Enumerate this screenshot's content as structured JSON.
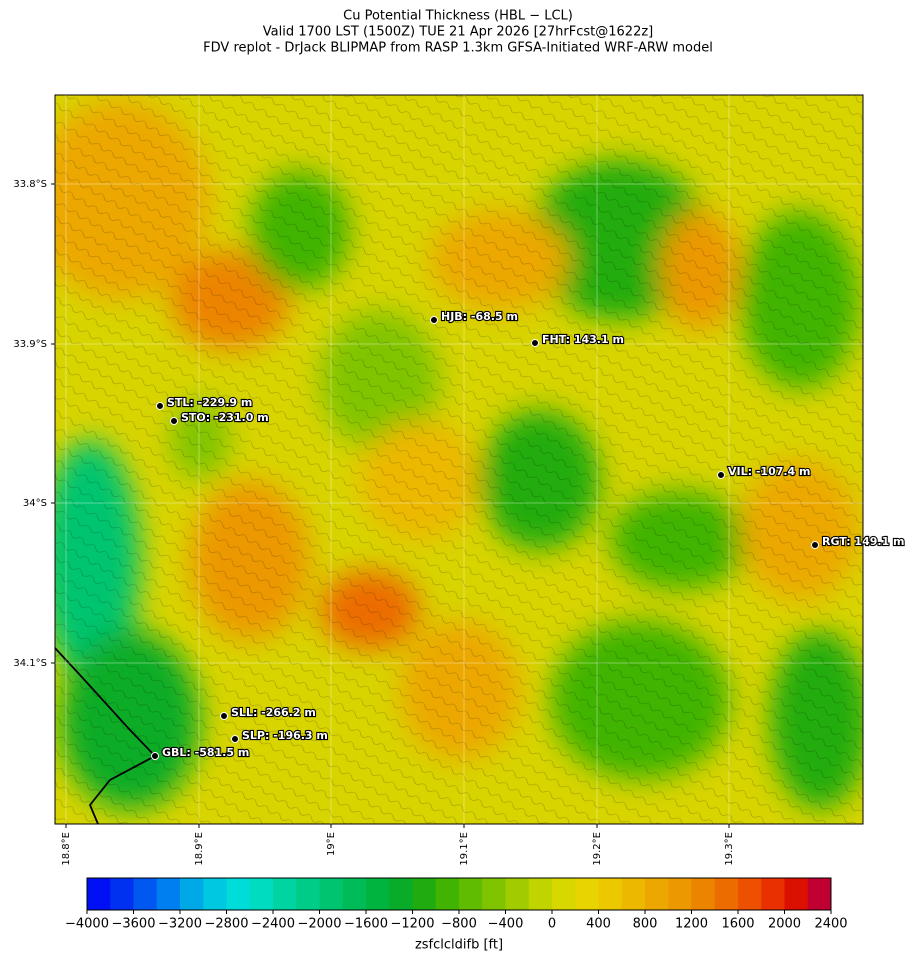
{
  "title": [
    "Cu Potential Thickness (HBL − LCL)",
    "Valid 1700 LST (1500Z) TUE 21 Apr 2026 [27hrFcst@1622z]",
    "FDV replot - DrJack BLIPMAP from RASP 1.3km GFSA-Initiated WRF-ARW model"
  ],
  "latitude_ticks": [
    "33.8°S",
    "33.9°S",
    "34°S",
    "34.1°S"
  ],
  "longitude_ticks": [
    "18.8°E",
    "18.9°E",
    "19°E",
    "19.1°E",
    "19.2°E",
    "19.3°E"
  ],
  "stations": [
    "HJB: -68.5 m",
    "FHT: 143.1 m",
    "STL: -229.9 m",
    "STO: -231.0 m",
    "VIL: -107.4 m",
    "RGT: 149.1 m",
    "SLL: -266.2 m",
    "SLP: -196.3 m",
    "GBL: -581.5 m"
  ],
  "colorbar": {
    "label": "zsfclcldifb [ft]",
    "lim": [
      -4000,
      2400
    ],
    "step": 200,
    "ticks": [
      {
        "value": -4000,
        "label": "−4000"
      },
      {
        "value": -3600,
        "label": "−3600"
      },
      {
        "value": -3200,
        "label": "−3200"
      },
      {
        "value": -2800,
        "label": "−2800"
      },
      {
        "value": -2400,
        "label": "−2400"
      },
      {
        "value": -2000,
        "label": "−2000"
      },
      {
        "value": -1600,
        "label": "−1600"
      },
      {
        "value": -1200,
        "label": "−1200"
      },
      {
        "value": -800,
        "label": "−800"
      },
      {
        "value": -400,
        "label": "−400"
      },
      0,
      400,
      800,
      1200,
      1600,
      2000,
      2400
    ],
    "colors": [
      "#0010f5",
      "#0030f0",
      "#0058f0",
      "#0080f0",
      "#00a8e8",
      "#00c8e0",
      "#00dcd8",
      "#00dcc0",
      "#00d4a0",
      "#00cc88",
      "#00c470",
      "#00bc58",
      "#00b440",
      "#08ac28",
      "#20ac10",
      "#40b400",
      "#60bc00",
      "#80c400",
      "#a0cc00",
      "#c0d400",
      "#d8d800",
      "#e8d400",
      "#ecc800",
      "#ecb800",
      "#eca800",
      "#ec9800",
      "#ec8400",
      "#ec6c00",
      "#ec5000",
      "#e83000",
      "#dc1000",
      "#c00030"
    ]
  }
}
